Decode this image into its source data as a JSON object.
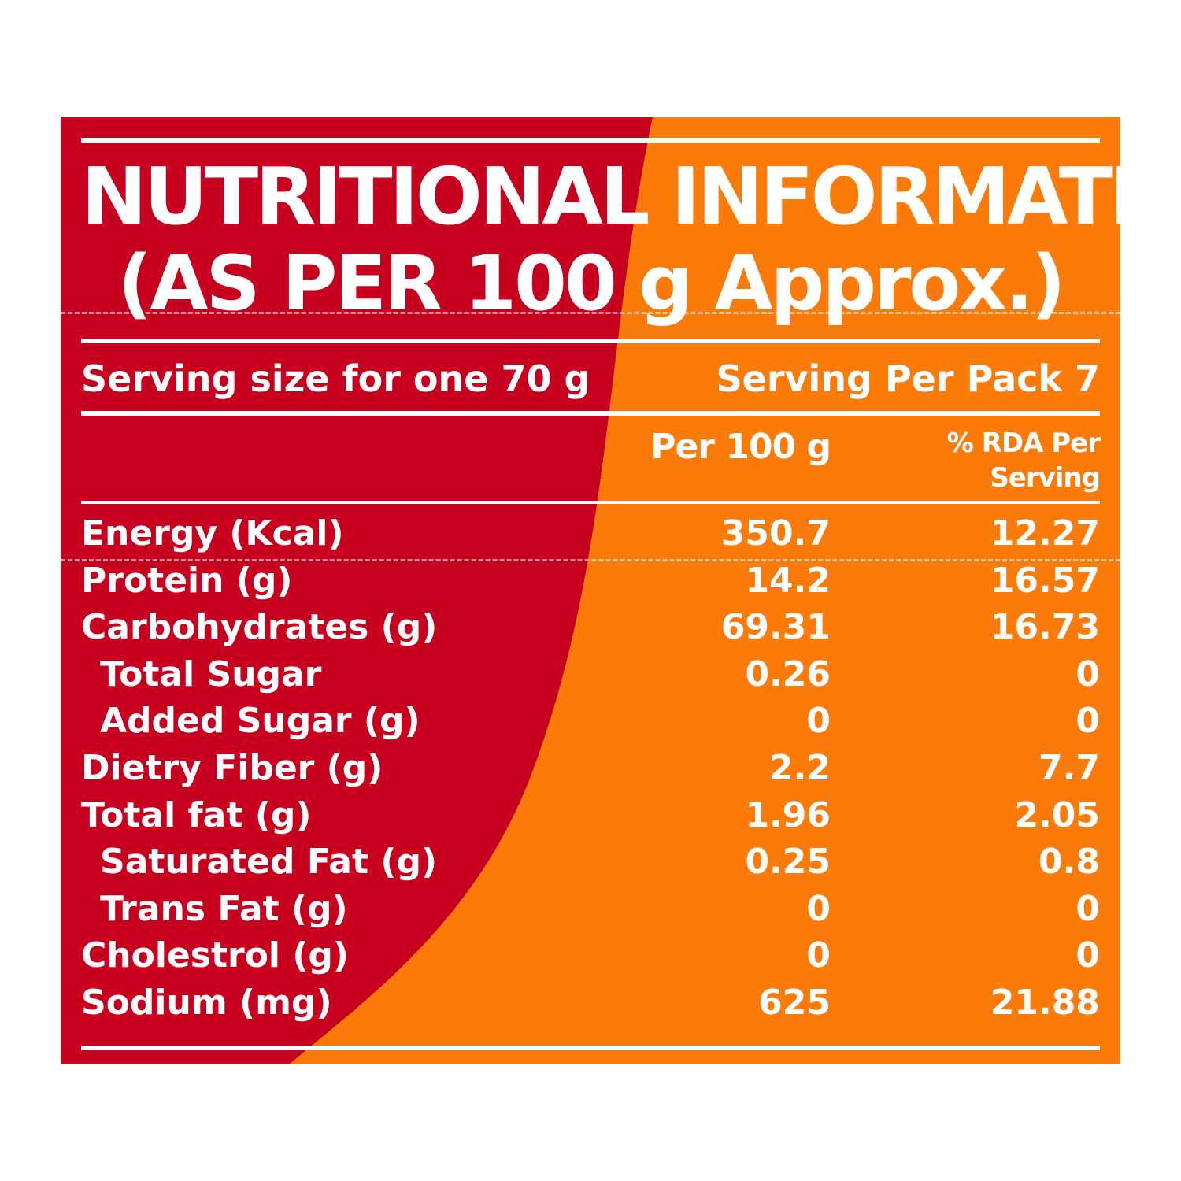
{
  "colors": {
    "red": "#c8001f",
    "orange": "#fa7b0a",
    "text": "#ffffff"
  },
  "title": {
    "line1": "NUTRITIONAL INFORMATION",
    "line2": "(AS PER 100 g Approx.)"
  },
  "serving": {
    "size": "Serving size for one 70 g",
    "per_pack": "Serving Per Pack 7"
  },
  "columns": {
    "per100": "Per 100 g",
    "rda_line1": "% RDA Per",
    "rda_line2": "Serving"
  },
  "rows": [
    {
      "label": "Energy (Kcal)",
      "per100": "350.7",
      "rda": "12.27",
      "indent": false
    },
    {
      "label": "Protein (g)",
      "per100": "14.2",
      "rda": "16.57",
      "indent": false
    },
    {
      "label": "Carbohydrates (g)",
      "per100": "69.31",
      "rda": "16.73",
      "indent": false
    },
    {
      "label": "Total Sugar",
      "per100": "0.26",
      "rda": "0",
      "indent": true
    },
    {
      "label": "Added Sugar (g)",
      "per100": "0",
      "rda": "0",
      "indent": true
    },
    {
      "label": "Dietry Fiber (g)",
      "per100": "2.2",
      "rda": "7.7",
      "indent": false
    },
    {
      "label": "Total fat (g)",
      "per100": "1.96",
      "rda": "2.05",
      "indent": false
    },
    {
      "label": "Saturated Fat (g)",
      "per100": "0.25",
      "rda": "0.8",
      "indent": true
    },
    {
      "label": "Trans Fat (g)",
      "per100": "0",
      "rda": "0",
      "indent": true
    },
    {
      "label": "Cholestrol (g)",
      "per100": "0",
      "rda": "0",
      "indent": false
    },
    {
      "label": "Sodium (mg)",
      "per100": "625",
      "rda": "21.88",
      "indent": false
    }
  ]
}
